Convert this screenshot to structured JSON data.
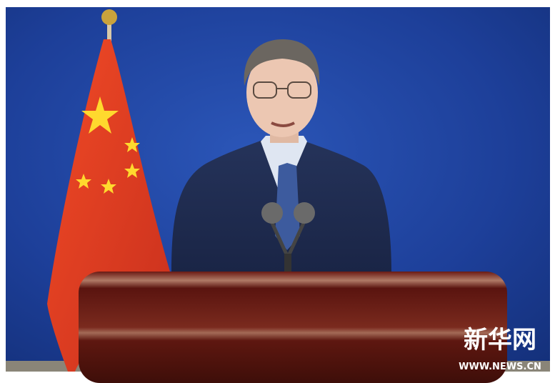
{
  "watermark": {
    "logo": "新华网",
    "url": "WWW.NEWS.CN"
  }
}
